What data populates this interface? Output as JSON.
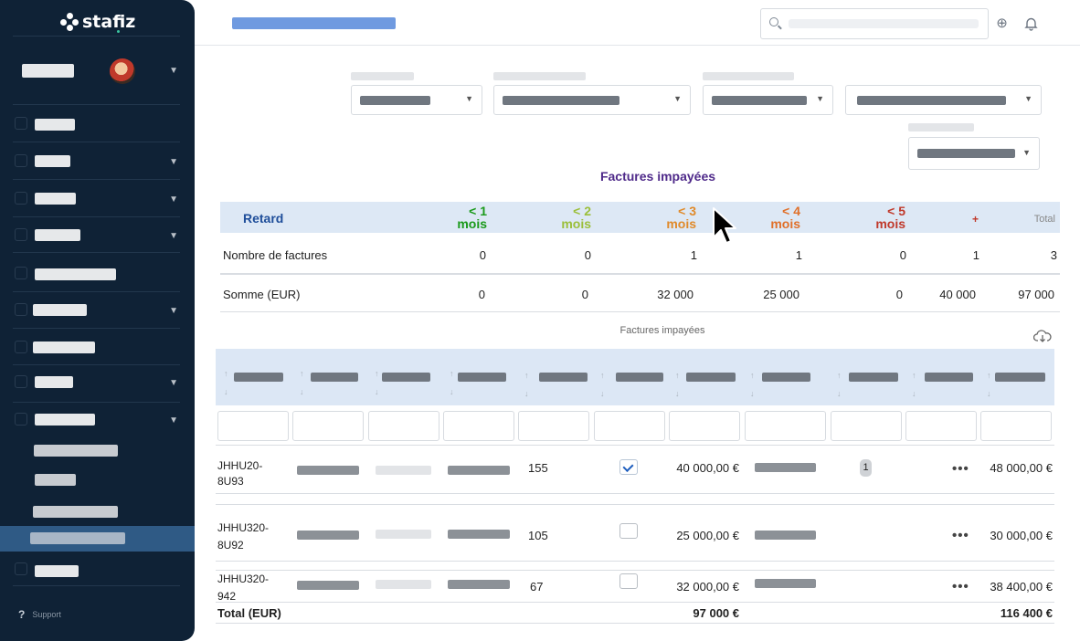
{
  "app": {
    "logo_text": "stafiz"
  },
  "sidebar": {
    "support_label": "Support"
  },
  "icons": {
    "search": "search-icon",
    "add": "plus-circle-icon",
    "notifications": "bell-icon",
    "download": "cloud-download-icon",
    "more": "more-dots-icon"
  },
  "summary": {
    "title": "Factures impayées",
    "header": {
      "retard": "Retard",
      "c1a": "< 1",
      "c1b": "mois",
      "c2a": "< 2",
      "c2b": "mois",
      "c3a": "< 3",
      "c3b": "mois",
      "c4a": "< 4",
      "c4b": "mois",
      "c5a": "< 5",
      "c5b": "mois",
      "plus": "+",
      "total": "Total"
    },
    "colors": {
      "c1": "#1a9a1a",
      "c2": "#9bbf3a",
      "c3": "#e08a2a",
      "c4": "#e0702a",
      "c5": "#c0392b",
      "plus": "#c0392b",
      "total": "#888888",
      "retard": "#1f4e9a"
    },
    "rows": [
      {
        "label": "Nombre de factures",
        "values": [
          "0",
          "0",
          "1",
          "1",
          "0",
          "1",
          "3"
        ]
      },
      {
        "label": "Somme (EUR)",
        "values": [
          "0",
          "0",
          "32 000",
          "25 000",
          "0",
          "40 000",
          "97 000"
        ]
      }
    ]
  },
  "detail": {
    "title": "Factures impayées",
    "rows": [
      {
        "ref": "JHHU20-\n8U93",
        "ref1": "JHHU20-",
        "ref2": "8U93",
        "num": "155",
        "checked": true,
        "amount": "40 000,00 €",
        "badge": "1",
        "total": "48 000,00 €"
      },
      {
        "ref": "JHHU320-\n8U92",
        "ref1": "JHHU320-",
        "ref2": "8U92",
        "num": "105",
        "checked": false,
        "amount": "25 000,00 €",
        "badge": "",
        "total": "30 000,00 €"
      },
      {
        "ref": "JHHU320-\n942",
        "ref1": "JHHU320-",
        "ref2": "942",
        "num": "67",
        "checked": false,
        "amount": "32 000,00 €",
        "badge": "",
        "total": "38 400,00 €"
      }
    ],
    "footer": {
      "label": "Total (EUR)",
      "amount": "97 000 €",
      "total": "116 400 €"
    }
  }
}
